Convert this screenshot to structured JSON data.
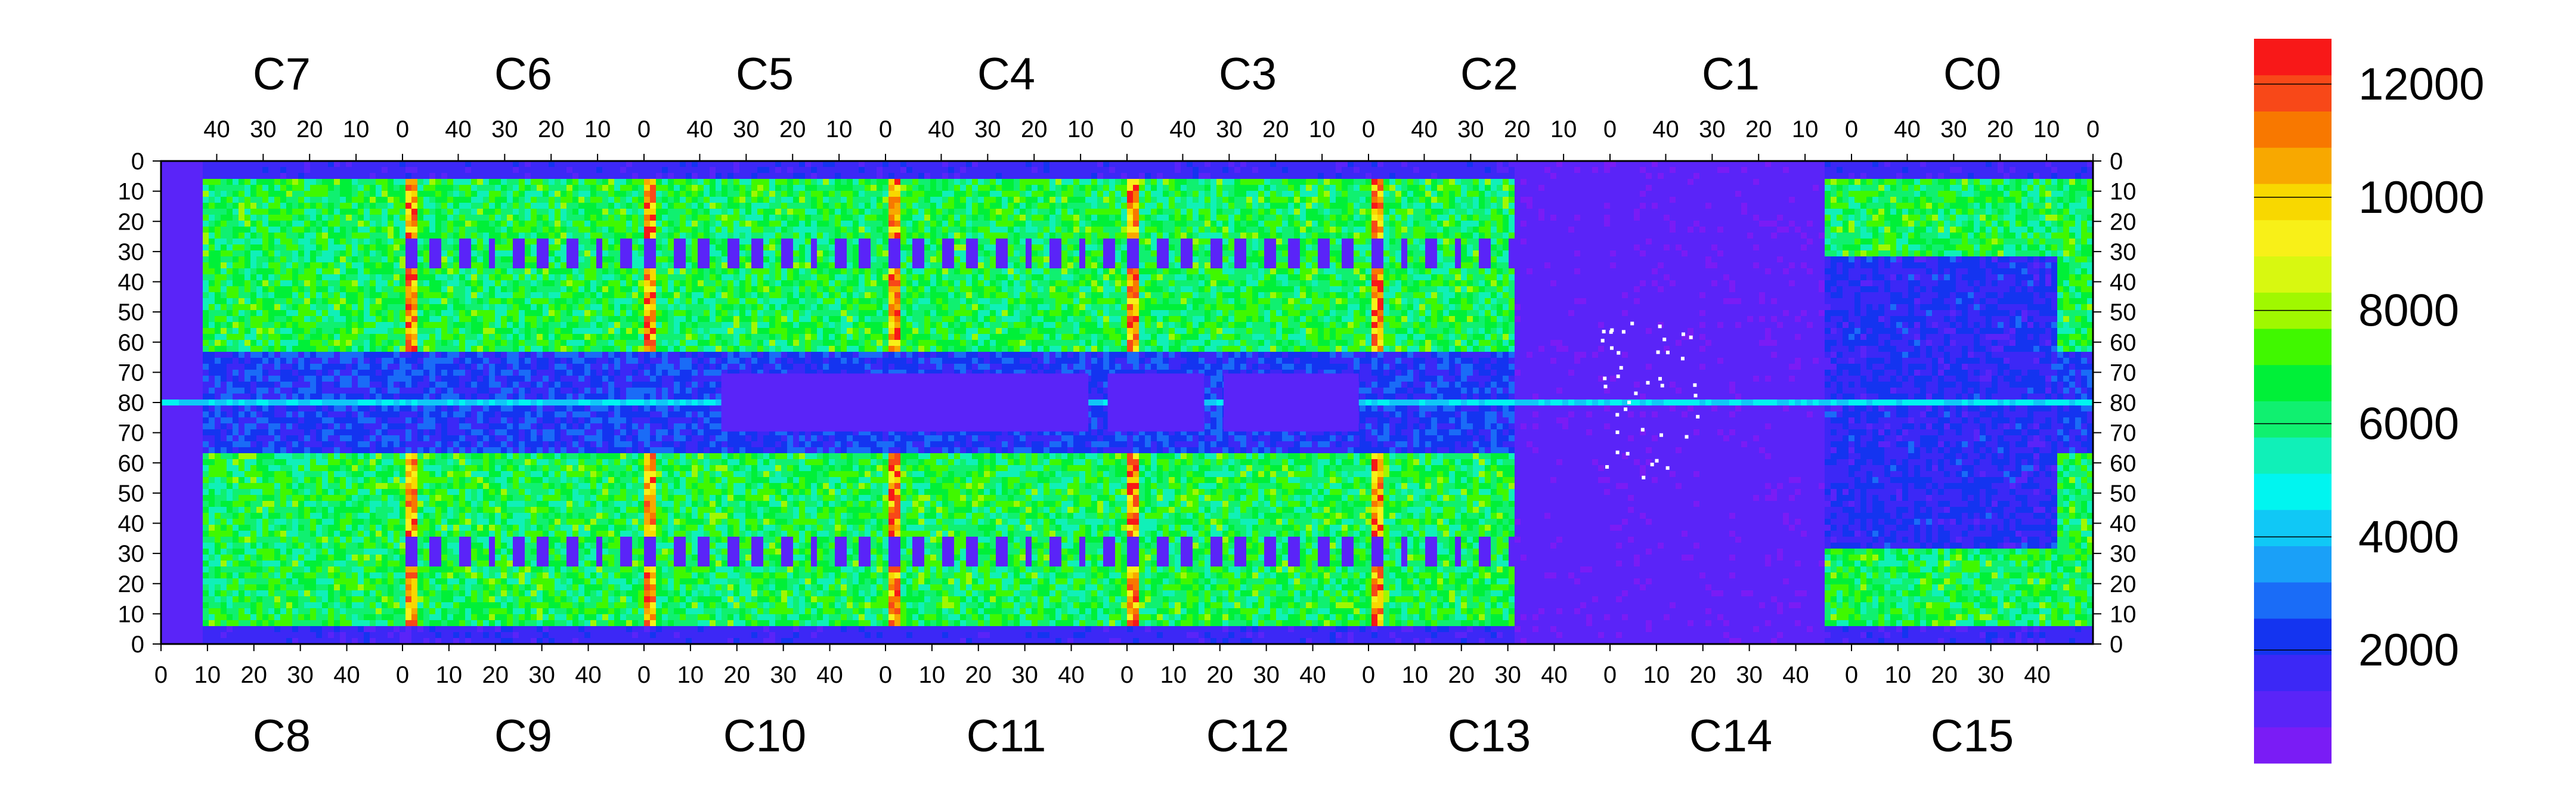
{
  "chart_data": {
    "type": "heatmap",
    "title": "",
    "xlabel": "",
    "ylabel": "",
    "colormap": "rainbow (purple-blue-cyan-green-yellow-orange-red)",
    "z_range": [
      0,
      12800
    ],
    "colorbar": {
      "ticks": [
        2000,
        4000,
        6000,
        8000,
        10000,
        12000
      ],
      "tick_labels": [
        "2000",
        "4000",
        "6000",
        "8000",
        "10000",
        "12000"
      ],
      "colors": [
        "#7a1cf5",
        "#5a24f8",
        "#3c28f6",
        "#1434f0",
        "#1a6cf7",
        "#1aa0f8",
        "#10c8f6",
        "#00f5f0",
        "#10f0b8",
        "#10f070",
        "#00f038",
        "#40f800",
        "#a0f800",
        "#d8f810",
        "#f8f018",
        "#f8d800",
        "#f8a800",
        "#f87800",
        "#f84818",
        "#f81818"
      ]
    },
    "top_chips": [
      "C7",
      "C6",
      "C5",
      "C4",
      "C3",
      "C2",
      "C1",
      "C0"
    ],
    "bottom_chips": [
      "C8",
      "C9",
      "C10",
      "C11",
      "C12",
      "C13",
      "C14",
      "C15"
    ],
    "top_ticks": [
      "40",
      "30",
      "20",
      "10",
      "0"
    ],
    "bottom_ticks": [
      "0",
      "10",
      "20",
      "30",
      "40"
    ],
    "left_ticks": [
      "0",
      "10",
      "20",
      "30",
      "40",
      "50",
      "60",
      "70",
      "80",
      "70",
      "60",
      "50",
      "40",
      "30",
      "20",
      "10",
      "0"
    ],
    "right_ticks": [
      "0",
      "10",
      "20",
      "30",
      "40",
      "50",
      "60",
      "70",
      "80",
      "70",
      "60",
      "50",
      "40",
      "30",
      "20",
      "10",
      "0"
    ],
    "columns_per_chip": 52,
    "rows_per_half": 80,
    "hot_columns_chip_index": [
      1,
      2,
      3,
      4,
      5
    ],
    "low_region_chips": [
      "C1",
      "C13",
      "C14"
    ],
    "grid": false
  }
}
